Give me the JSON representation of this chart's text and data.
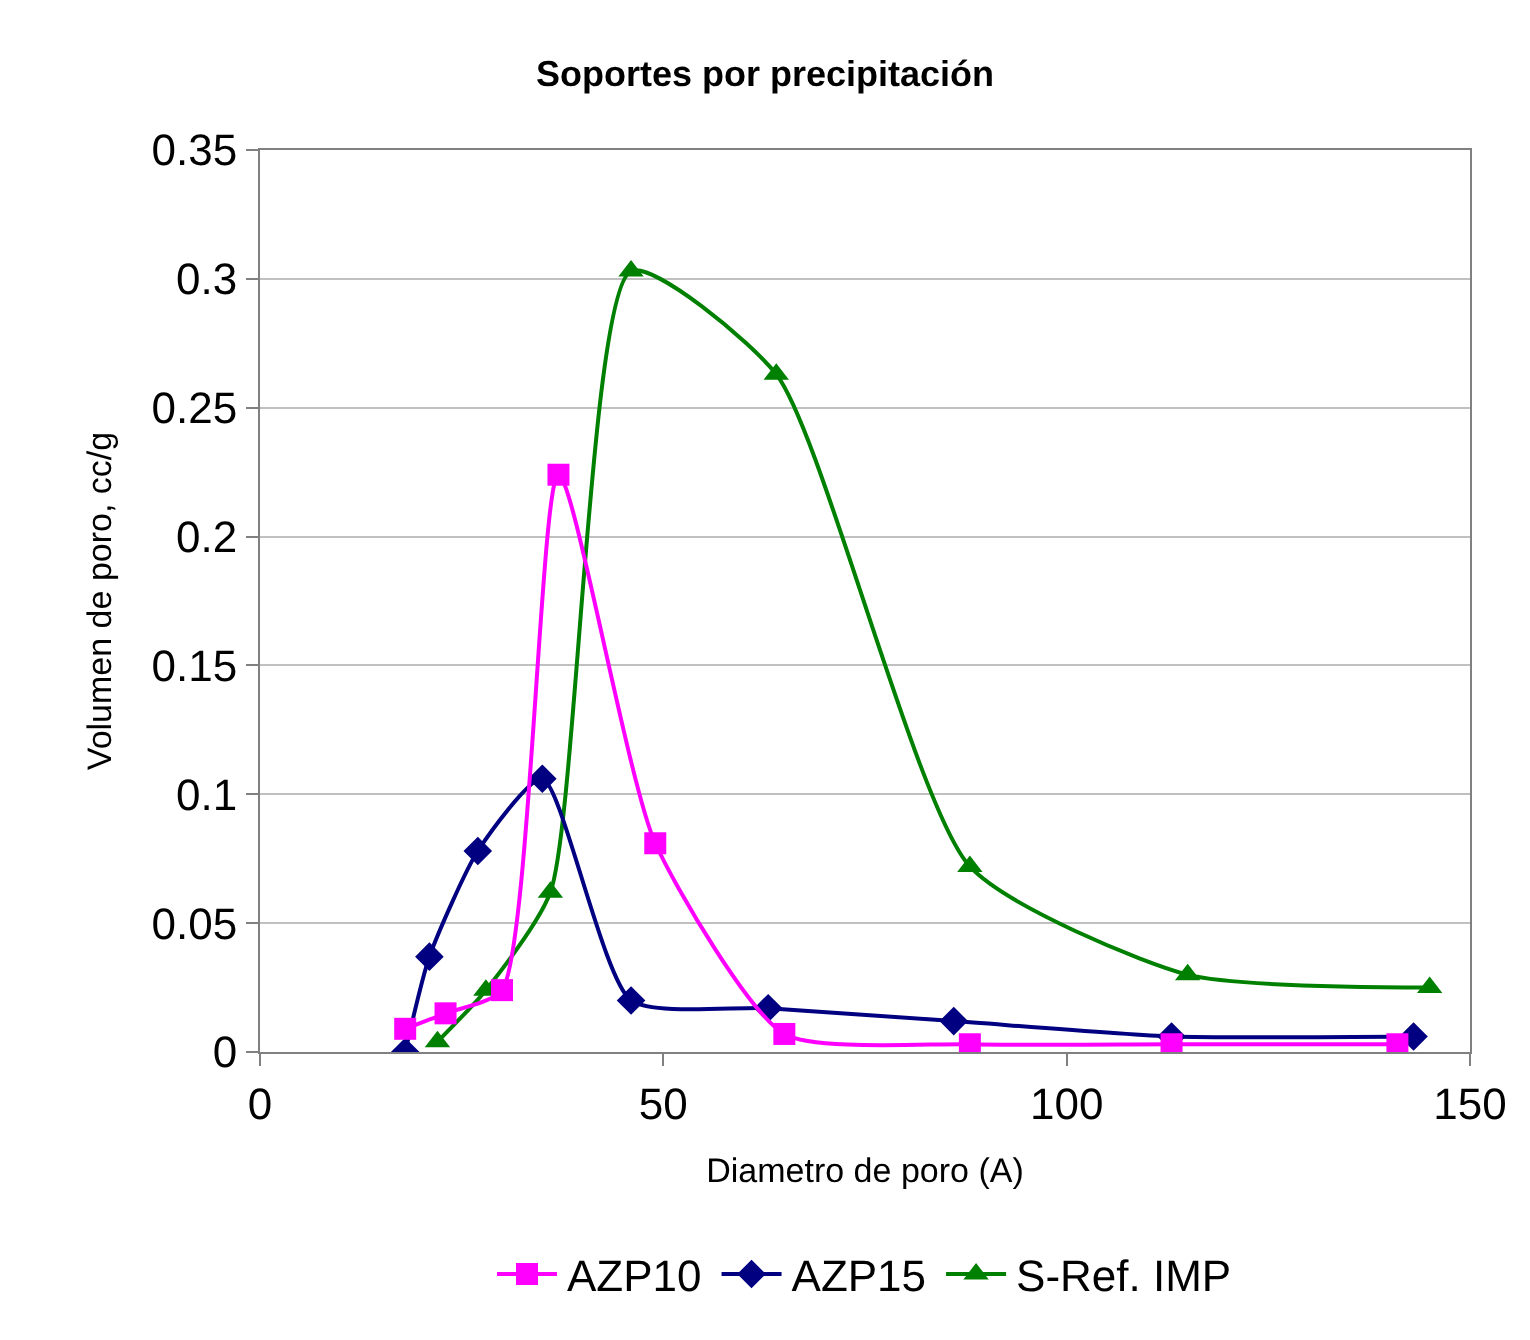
{
  "chart_data": {
    "type": "line",
    "title": "Soportes por precipitación",
    "xlabel": "Diametro de poro (A)",
    "ylabel": "Volumen de poro, cc/g",
    "xlim": [
      0,
      150
    ],
    "xticks": [
      0,
      50,
      100,
      150
    ],
    "ylim": [
      0,
      0.35
    ],
    "yticks": [
      0,
      0.05,
      0.1,
      0.15,
      0.2,
      0.25,
      0.3,
      0.35
    ],
    "grid": "y",
    "legend": "bottom",
    "series": [
      {
        "name": "AZP10",
        "color": "#ff00ff",
        "marker": "square",
        "x": [
          18,
          23,
          30,
          37,
          49,
          65,
          88,
          113,
          141
        ],
        "values": [
          0.009,
          0.015,
          0.024,
          0.224,
          0.081,
          0.007,
          0.003,
          0.003,
          0.003
        ]
      },
      {
        "name": "AZP15",
        "color": "#000080",
        "marker": "diamond",
        "x": [
          18,
          21,
          27,
          35,
          46,
          63,
          86,
          113,
          143
        ],
        "values": [
          0,
          0.037,
          0.078,
          0.106,
          0.02,
          0.017,
          0.012,
          0.006,
          0.006
        ]
      },
      {
        "name": "S-Ref. IMP",
        "color": "#008000",
        "marker": "triangle",
        "x": [
          22,
          28,
          36,
          46,
          64,
          88,
          115,
          145
        ],
        "values": [
          0.004,
          0.024,
          0.062,
          0.303,
          0.263,
          0.072,
          0.03,
          0.025
        ]
      }
    ]
  }
}
